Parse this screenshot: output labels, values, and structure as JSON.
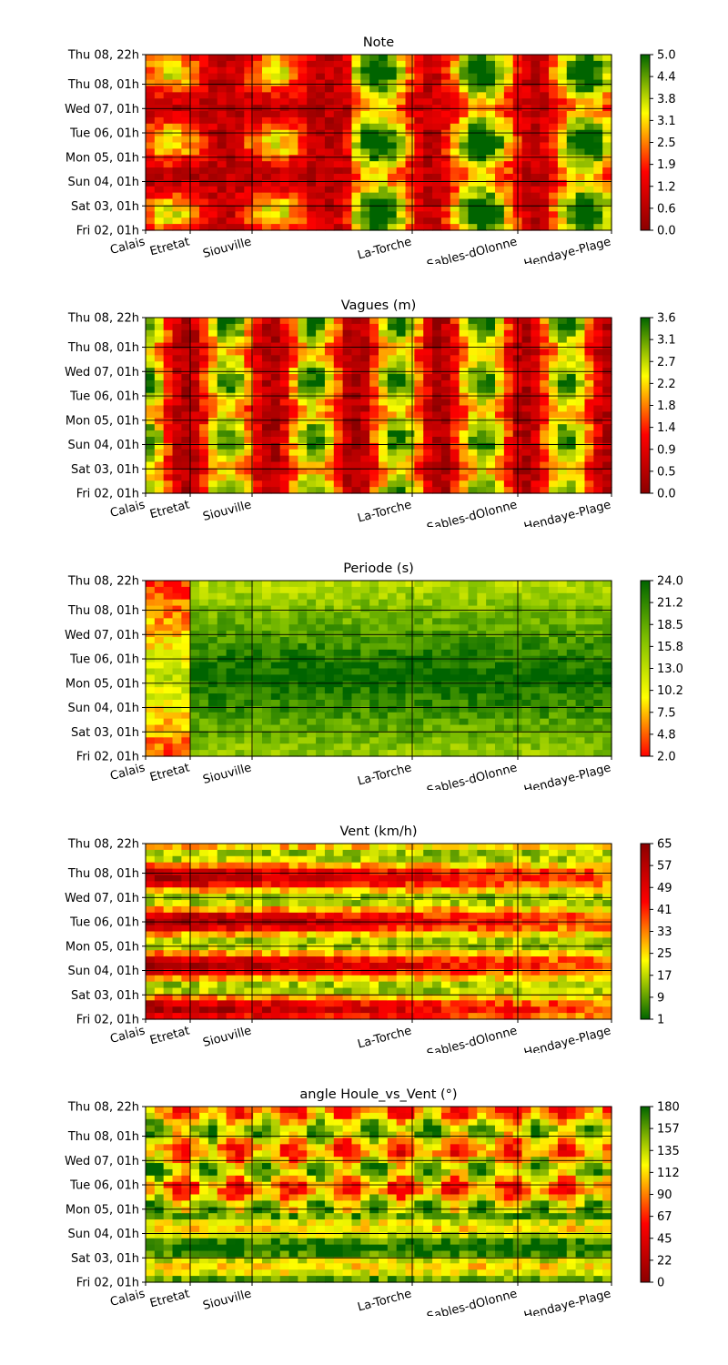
{
  "chart_data": {
    "type": "heatmap",
    "y_tick_labels": [
      "Fri 02, 01h",
      "Sat 03, 01h",
      "Sun 04, 01h",
      "Mon 05, 01h",
      "Tue 06, 01h",
      "Wed 07, 01h",
      "Thu 08, 01h",
      "Thu 08, 22h"
    ],
    "x_tick_labels": [
      "Calais",
      "Etretat",
      "Siouville",
      "La-Torche",
      "Les-Sables-dOlonne",
      "Hendaye-Plage"
    ],
    "panels": [
      {
        "title": "Note",
        "colormap": [
          "#8b0000",
          "#ff0000",
          "#ffff00",
          "#006400"
        ],
        "colorbar_ticks": [
          "0.0",
          "0.6",
          "1.2",
          "1.9",
          "2.5",
          "3.1",
          "3.8",
          "4.4",
          "5.0"
        ],
        "vmin": 0.0,
        "vmax": 5.0
      },
      {
        "title": "Vagues (m)",
        "colormap": [
          "#8b0000",
          "#ff0000",
          "#ffff00",
          "#006400"
        ],
        "colorbar_ticks": [
          "0.0",
          "0.5",
          "0.9",
          "1.4",
          "1.8",
          "2.2",
          "2.7",
          "3.1",
          "3.6"
        ],
        "vmin": 0.0,
        "vmax": 3.6
      },
      {
        "title": "Periode (s)",
        "colormap": [
          "#ff0000",
          "#ffff00",
          "#7fbf00",
          "#006400"
        ],
        "colorbar_ticks": [
          "2.0",
          "4.8",
          "7.5",
          "10.2",
          "13.0",
          "15.8",
          "18.5",
          "21.2",
          "24.0"
        ],
        "vmin": 2.0,
        "vmax": 24.0
      },
      {
        "title": "Vent (km/h)",
        "colormap": [
          "#006400",
          "#ffff00",
          "#ff0000",
          "#8b0000"
        ],
        "colorbar_ticks": [
          "1",
          "9",
          "17",
          "25",
          "33",
          "41",
          "49",
          "57",
          "65"
        ],
        "vmin": 1,
        "vmax": 65
      },
      {
        "title": "angle Houle_vs_Vent (°)",
        "colormap": [
          "#8b0000",
          "#ff0000",
          "#ffff00",
          "#006400"
        ],
        "colorbar_ticks": [
          "0",
          "22",
          "45",
          "67",
          "90",
          "112",
          "135",
          "157",
          "180"
        ],
        "vmin": 0,
        "vmax": 180
      }
    ]
  }
}
